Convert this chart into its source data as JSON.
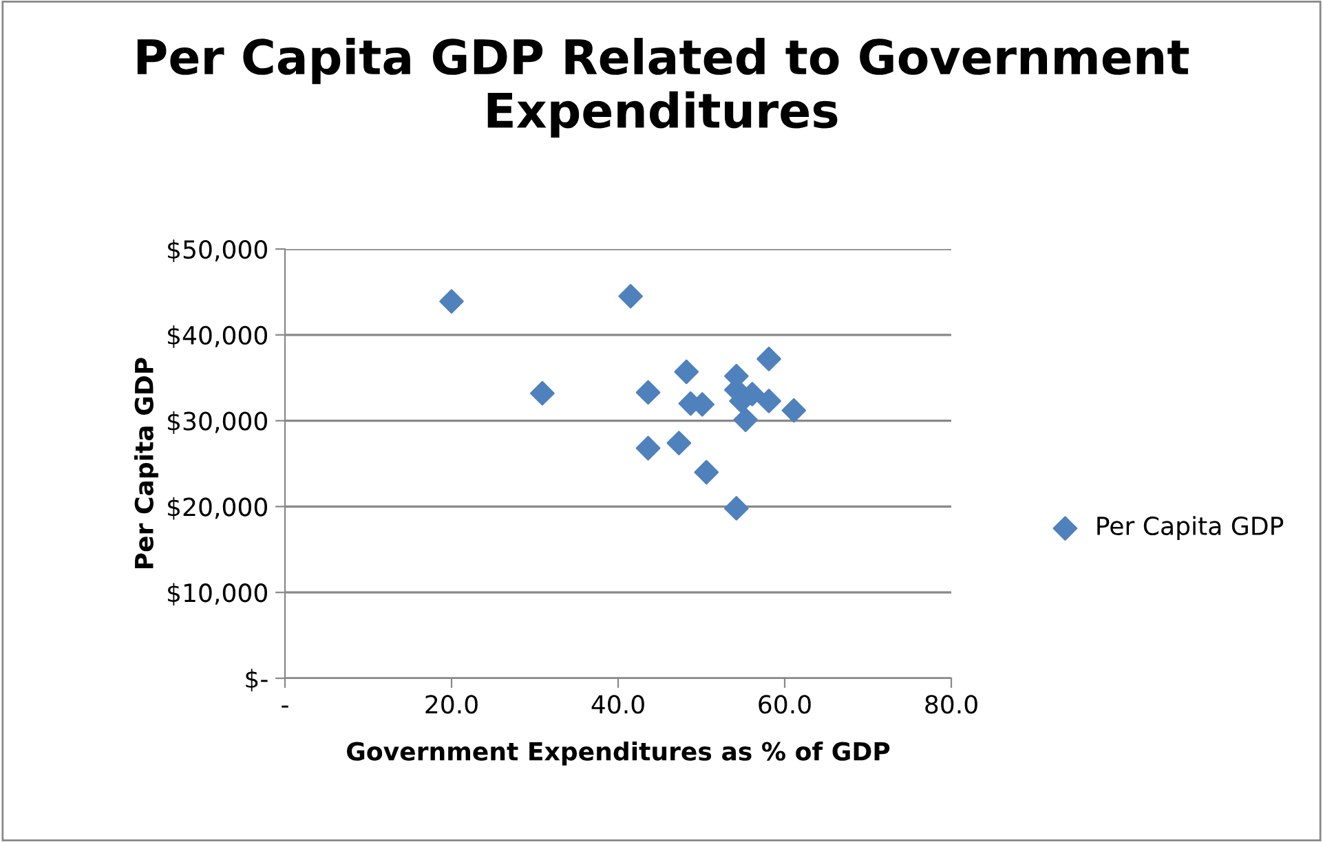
{
  "chart_data": {
    "type": "scatter",
    "title": "Per Capita GDP Related to Government Expenditures",
    "xlabel": "Government Expenditures as % of GDP",
    "ylabel": "Per Capita GDP",
    "series": [
      {
        "name": "Per Capita GDP",
        "color": "#4f81bd",
        "x": [
          20.0,
          30.9,
          41.5,
          43.6,
          43.6,
          47.3,
          48.2,
          48.7,
          50.1,
          50.6,
          54.2,
          54.2,
          54.2,
          54.8,
          55.3,
          56.1,
          58.1,
          58.1,
          61.1
        ],
        "values": [
          43900,
          33200,
          44500,
          33300,
          26800,
          27400,
          35700,
          32000,
          31900,
          24000,
          35200,
          33600,
          19800,
          32300,
          30100,
          33100,
          37200,
          32300,
          31200
        ]
      }
    ],
    "xlim": [
      0,
      80
    ],
    "xticks": [
      {
        "value": 0,
        "label": "-"
      },
      {
        "value": 20,
        "label": "20.0"
      },
      {
        "value": 40,
        "label": "40.0"
      },
      {
        "value": 60,
        "label": "60.0"
      },
      {
        "value": 80,
        "label": "80.0"
      }
    ],
    "ylim": [
      0,
      50000
    ],
    "yticks": [
      {
        "value": 0,
        "label": "$-"
      },
      {
        "value": 10000,
        "label": "$10,000"
      },
      {
        "value": 20000,
        "label": "$20,000"
      },
      {
        "value": 30000,
        "label": "$30,000"
      },
      {
        "value": 40000,
        "label": "$40,000"
      },
      {
        "value": 50000,
        "label": "$50,000"
      }
    ],
    "grid": "y",
    "legend": "right",
    "marker": "diamond"
  }
}
